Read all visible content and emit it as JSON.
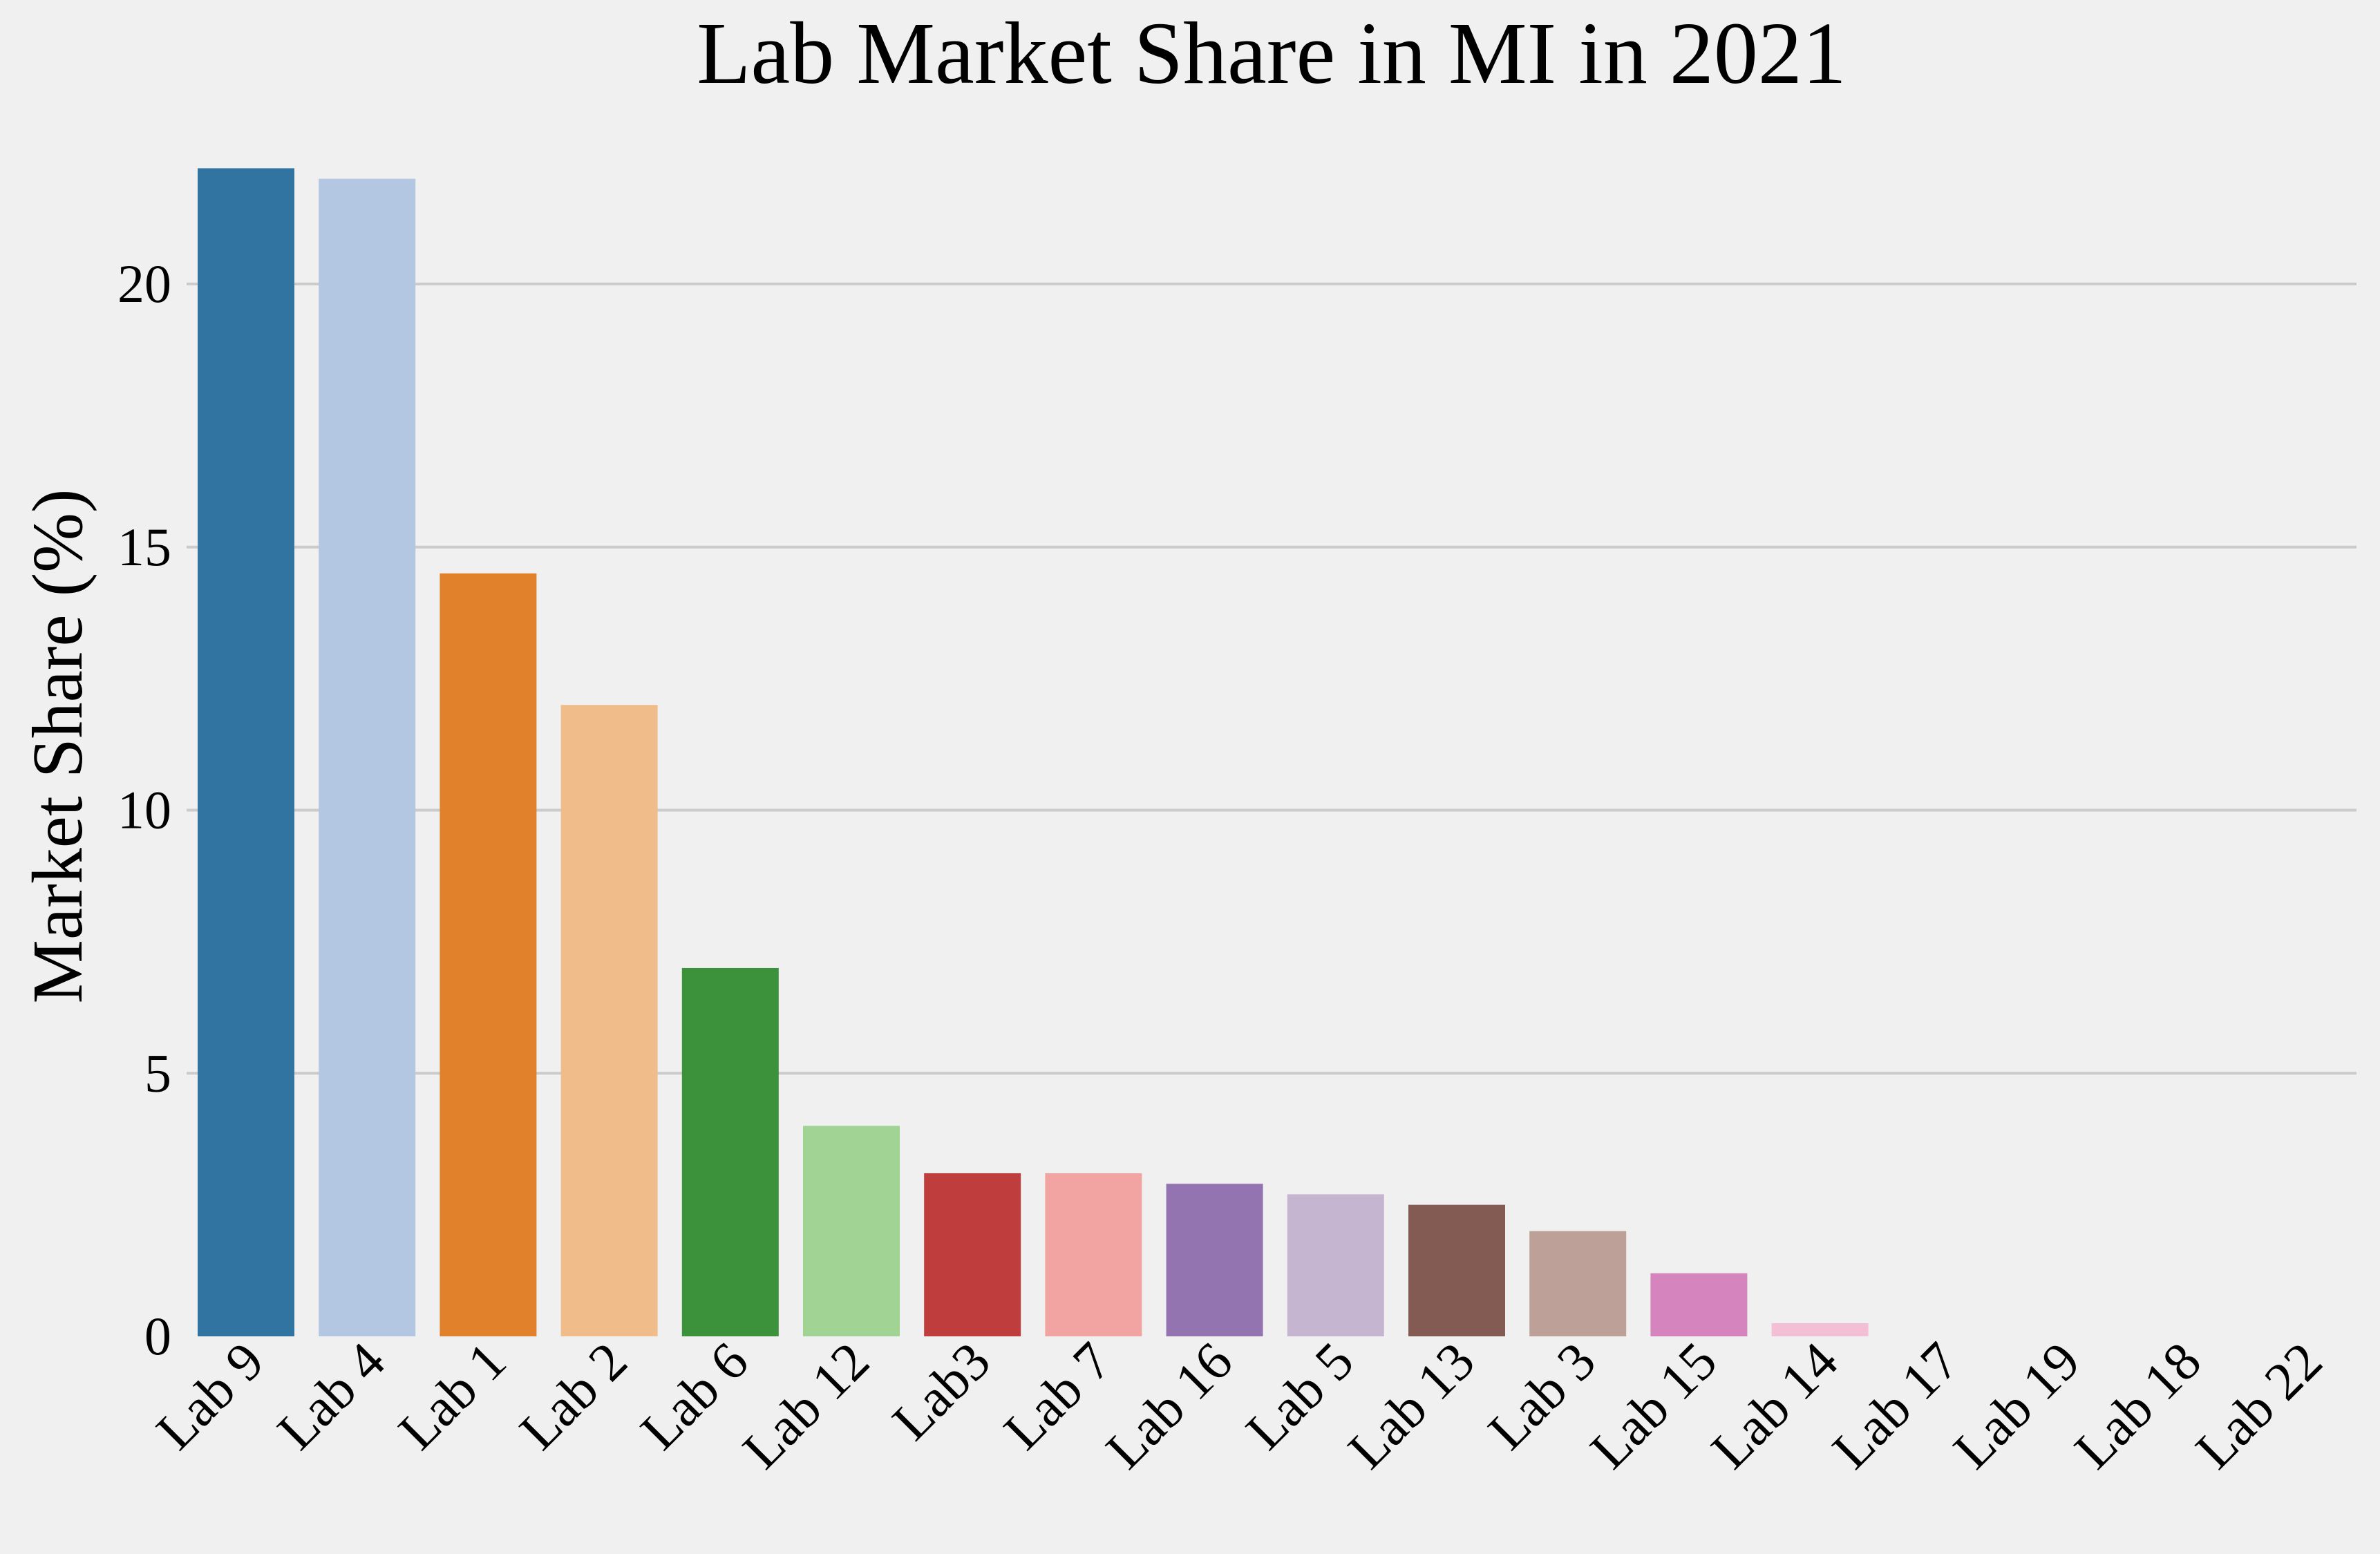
{
  "chart_data": {
    "type": "bar",
    "title": "Lab Market Share in MI in 2021",
    "xlabel": "",
    "ylabel": "Market Share (%)",
    "categories": [
      "Lab 9",
      "Lab 4",
      "Lab 1",
      "Lab 2",
      "Lab 6",
      "Lab 12",
      "Lab3",
      "Lab 7",
      "Lab 16",
      "Lab 5",
      "Lab 13",
      "Lab 3",
      "Lab 15",
      "Lab 14",
      "Lab 17",
      "Lab 19",
      "Lab 18",
      "Lab 22"
    ],
    "values": [
      22.2,
      22.0,
      14.5,
      12.0,
      7.0,
      4.0,
      3.1,
      3.1,
      2.9,
      2.7,
      2.5,
      2.0,
      1.2,
      0.25,
      0.0,
      0.0,
      0.0,
      0.0
    ],
    "colors": [
      "#3274a1",
      "#b3c7e3",
      "#e1812c",
      "#f0bc8a",
      "#3b923b",
      "#a1d394",
      "#bf3d3d",
      "#f2a4a3",
      "#9374b1",
      "#c5b5d0",
      "#845b53",
      "#bda097",
      "#d584be",
      "#f2bfd4",
      "#bcbcbc",
      "#bcbcbc",
      "#bcbcbc",
      "#bcbcbc"
    ],
    "yticks": [
      0,
      5,
      10,
      15,
      20
    ],
    "ylim": [
      0,
      23.3
    ],
    "grid": "horizontal",
    "legend": "none"
  }
}
